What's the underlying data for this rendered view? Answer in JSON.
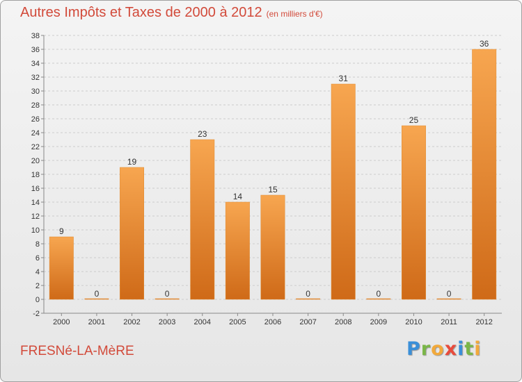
{
  "header": {
    "title": "Autres Impôts et Taxes de 2000 à 2012",
    "subtitle": "(en milliers d'€)"
  },
  "footer": {
    "commune": "FRESNé-LA-MèRE",
    "logo_letters": [
      {
        "ch": "P",
        "color": "#3a8fd8"
      },
      {
        "ch": "r",
        "color": "#7ab648"
      },
      {
        "ch": "o",
        "color": "#f2a93b"
      },
      {
        "ch": "x",
        "color": "#e84b3c"
      },
      {
        "ch": "i",
        "color": "#3a8fd8"
      },
      {
        "ch": "t",
        "color": "#7ab648"
      },
      {
        "ch": "i",
        "color": "#f2a93b"
      }
    ]
  },
  "colors": {
    "bar_top": "#f7a650",
    "bar_bottom": "#cf6a18",
    "grid": "#cccccc",
    "axis": "#888888"
  },
  "chart_data": {
    "type": "bar",
    "title": "Autres Impôts et Taxes de 2000 à 2012",
    "subtitle": "(en milliers d'€)",
    "categories": [
      "2000",
      "2001",
      "2002",
      "2003",
      "2004",
      "2005",
      "2006",
      "2007",
      "2008",
      "2009",
      "2010",
      "2011",
      "2012"
    ],
    "values": [
      9,
      0,
      19,
      0,
      23,
      14,
      15,
      0,
      31,
      0,
      25,
      0,
      36
    ],
    "data_labels": [
      "9",
      "0",
      "19",
      "0",
      "23",
      "14",
      "15",
      "0",
      "31",
      "0",
      "25",
      "0",
      "36"
    ],
    "ylim": [
      -2,
      38
    ],
    "yticks": [
      -2,
      0,
      2,
      4,
      6,
      8,
      10,
      12,
      14,
      16,
      18,
      20,
      22,
      24,
      26,
      28,
      30,
      32,
      34,
      36,
      38
    ],
    "ytick_labels": [
      "-2",
      "0",
      "2",
      "4",
      "6",
      "8",
      "10",
      "12",
      "14",
      "16",
      "18",
      "20",
      "22",
      "24",
      "26",
      "28",
      "30",
      "32",
      "34",
      "36",
      "38"
    ],
    "xlabel": "",
    "ylabel": "",
    "grid": true,
    "legend": "none"
  }
}
